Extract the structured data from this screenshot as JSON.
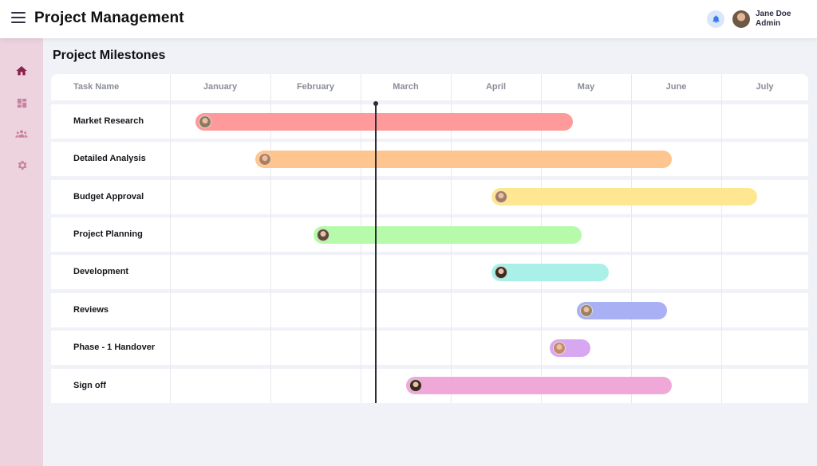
{
  "app": {
    "title": "Project Management"
  },
  "user": {
    "name": "Jane Doe",
    "role": "Admin"
  },
  "page": {
    "title": "Project Milestones"
  },
  "timeline": {
    "column_header": "Task Name",
    "months": [
      "January",
      "February",
      "March",
      "April",
      "May",
      "June",
      "July"
    ],
    "today_month_position": 2.17,
    "tasks": [
      {
        "name": "Market Research",
        "start": 0.25,
        "end": 4.35,
        "color": "#fe9a9a",
        "avatar": "#8d7a5e"
      },
      {
        "name": "Detailed Analysis",
        "start": 0.85,
        "end": 5.45,
        "color": "#ffc58f",
        "avatar": "#b07f5d"
      },
      {
        "name": "Budget Approval",
        "start": 3.45,
        "end": 6.4,
        "color": "#ffe791",
        "avatar": "#a57b63"
      },
      {
        "name": "Project Planning",
        "start": 1.48,
        "end": 4.45,
        "color": "#b5fba9",
        "avatar": "#5e4a3a"
      },
      {
        "name": "Development",
        "start": 3.45,
        "end": 4.75,
        "color": "#a9f1e8",
        "avatar": "#3d2a22"
      },
      {
        "name": "Reviews",
        "start": 4.4,
        "end": 5.4,
        "color": "#a9b0f3",
        "avatar": "#9a8266"
      },
      {
        "name": "Phase - 1 Handover",
        "start": 4.1,
        "end": 4.55,
        "color": "#d8a7f1",
        "avatar": "#c18a6a"
      },
      {
        "name": "Sign off",
        "start": 2.5,
        "end": 5.45,
        "color": "#f0a8d8",
        "avatar": "#3a2820"
      }
    ]
  },
  "colors": {
    "accent": "#8c1f4b",
    "sidebar_bg": "#ecd3de",
    "icon_muted": "#c8829f",
    "bell_bg": "#d9e6fb",
    "bell": "#3b7be6"
  },
  "icons": {
    "menu": "menu-icon",
    "bell": "bell-icon",
    "home": "home-icon",
    "dashboard": "dashboard-icon",
    "team": "team-icon",
    "settings": "gear-icon"
  }
}
